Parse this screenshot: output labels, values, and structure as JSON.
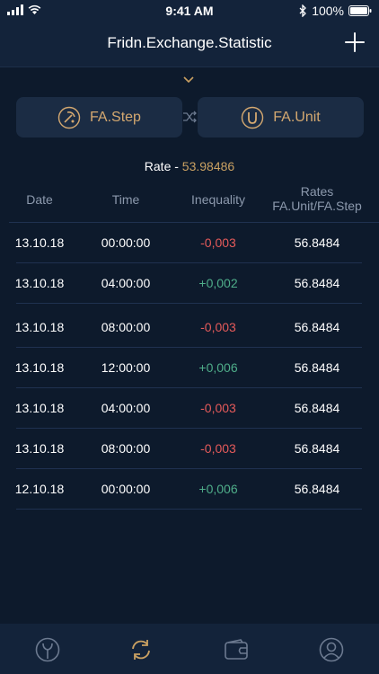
{
  "status": {
    "time": "9:41 AM",
    "battery": "100%"
  },
  "nav": {
    "title": "Fridn.Exchange.Statistic"
  },
  "pair": {
    "left_label": "FA.Step",
    "right_label": "FA.Unit"
  },
  "rate": {
    "label": "Rate - ",
    "value": "53.98486"
  },
  "table": {
    "headers": {
      "date": "Date",
      "time": "Time",
      "inequality": "Inequality",
      "rates_line1": "Rates",
      "rates_line2": "FA.Unit/FA.Step"
    },
    "rows": [
      {
        "date": "13.10.18",
        "time": "00:00:00",
        "inequality": "-0,003",
        "rate": "56.8484",
        "trend": "neg"
      },
      {
        "date": "13.10.18",
        "time": "04:00:00",
        "inequality": "+0,002",
        "rate": "56.8484",
        "trend": "pos"
      },
      {
        "date": "13.10.18",
        "time": "08:00:00",
        "inequality": "-0,003",
        "rate": "56.8484",
        "trend": "neg"
      },
      {
        "date": "13.10.18",
        "time": "12:00:00",
        "inequality": "+0,006",
        "rate": "56.8484",
        "trend": "pos"
      },
      {
        "date": "13.10.18",
        "time": "04:00:00",
        "inequality": "-0,003",
        "rate": "56.8484",
        "trend": "neg"
      },
      {
        "date": "13.10.18",
        "time": "08:00:00",
        "inequality": "-0,003",
        "rate": "56.8484",
        "trend": "neg"
      },
      {
        "date": "12.10.18",
        "time": "00:00:00",
        "inequality": "+0,006",
        "rate": "56.8484",
        "trend": "pos"
      }
    ]
  },
  "tabs": [
    {
      "icon": "fork-icon",
      "active": false
    },
    {
      "icon": "exchange-icon",
      "active": true
    },
    {
      "icon": "wallet-icon",
      "active": false
    },
    {
      "icon": "profile-icon",
      "active": false
    }
  ],
  "colors": {
    "accent": "#c9a062",
    "negative": "#e55a5a",
    "positive": "#4fae8a",
    "background": "#0d1a2c"
  }
}
